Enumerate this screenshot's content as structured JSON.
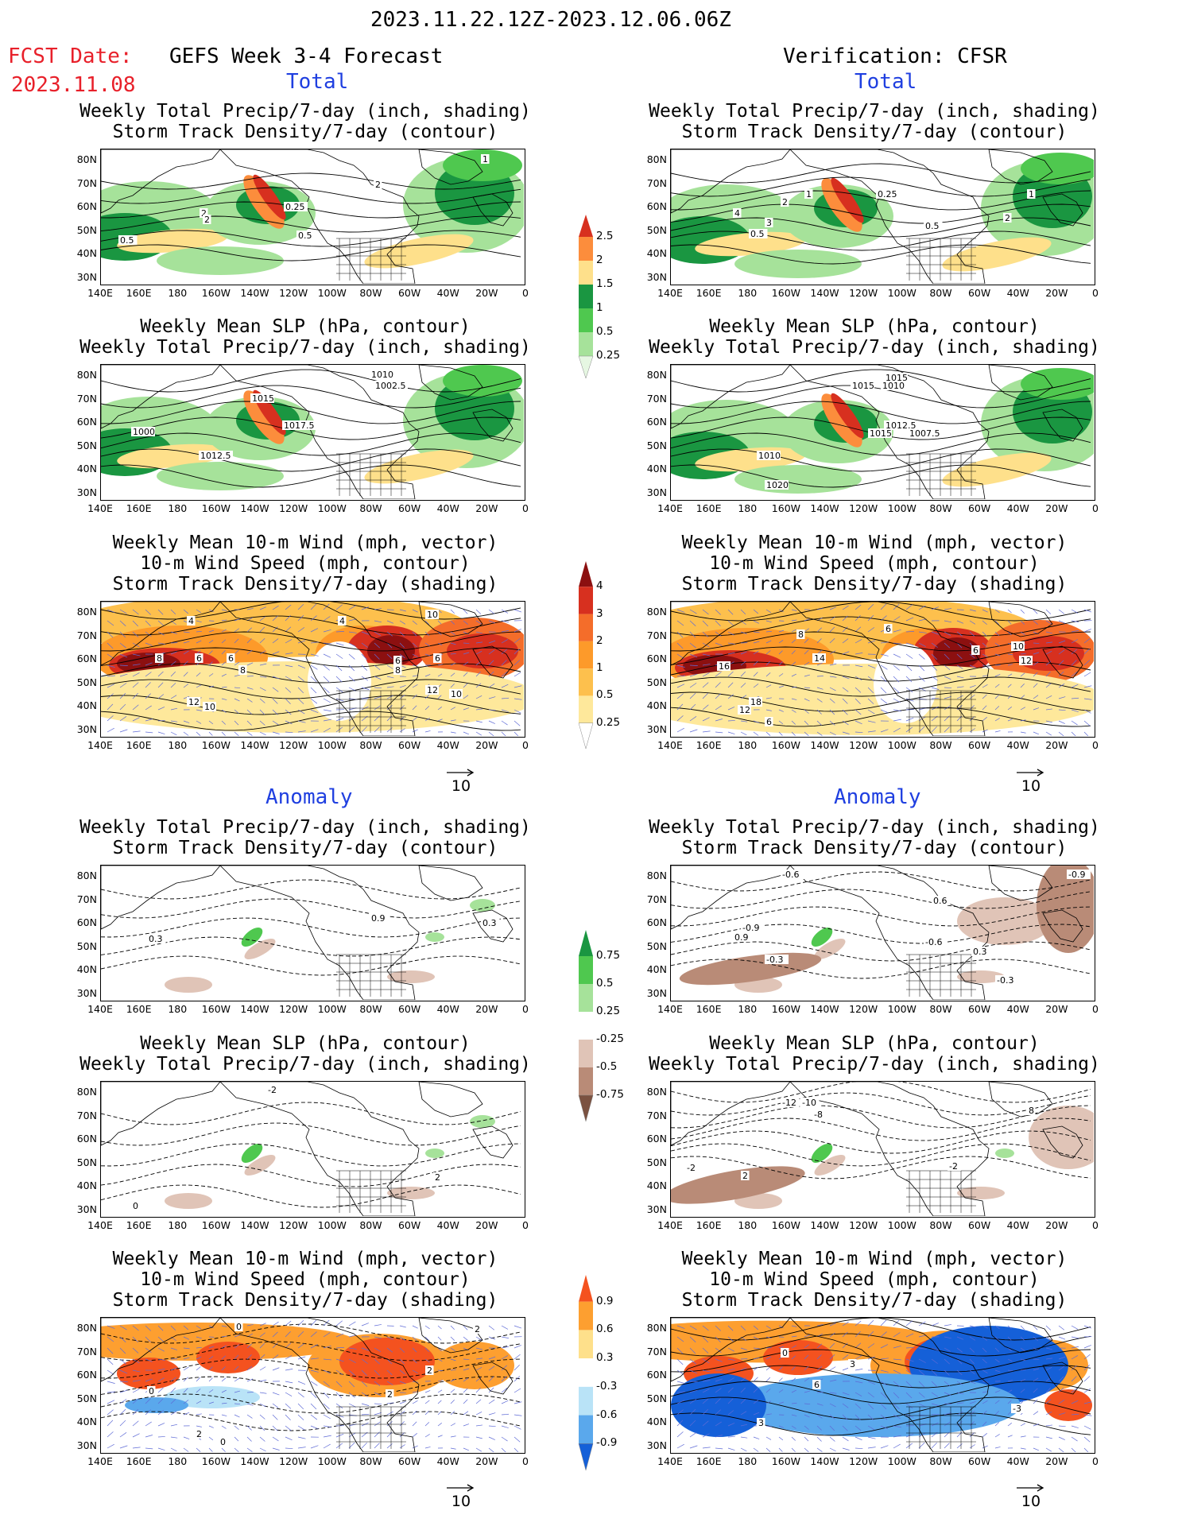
{
  "header": {
    "period": "2023.11.22.12Z-2023.12.06.06Z",
    "fcst_label": "FCST Date:",
    "fcst_date": "2023.11.08",
    "forecast_title": "GEFS Week 3-4 Forecast",
    "verification_title": "Verification: CFSR",
    "section_total": "Total",
    "section_anomaly": "Anomaly"
  },
  "panel_titles": {
    "precip_storm": [
      "Weekly Total Precip/7-day (inch, shading)",
      "Storm Track Density/7-day (contour)"
    ],
    "slp_precip": [
      "Weekly Mean SLP (hPa, contour)",
      "Weekly Total Precip/7-day (inch, shading)"
    ],
    "wind_storm": [
      "Weekly Mean 10-m Wind (mph, vector)",
      "10-m Wind Speed (mph, contour)",
      "Storm Track Density/7-day (shading)"
    ]
  },
  "axes": {
    "lat_ticks": [
      "80N",
      "70N",
      "60N",
      "50N",
      "40N",
      "30N"
    ],
    "lon_ticks": [
      "140E",
      "160E",
      "180",
      "160W",
      "140W",
      "120W",
      "100W",
      "80W",
      "60W",
      "40W",
      "20W",
      "0"
    ]
  },
  "vector_reference": "10",
  "colorbars": {
    "precip_total": {
      "labels": [
        "2.5",
        "2",
        "1.5",
        "1",
        "0.5",
        "0.25"
      ],
      "colors": [
        "#d7301f",
        "#fc8d3c",
        "#fee08b",
        "#1a9641",
        "#4fc84f",
        "#a6e29a",
        "#e6f7e2"
      ]
    },
    "storm_total": {
      "labels": [
        "4",
        "3",
        "2",
        "1",
        "0.5",
        "0.25"
      ],
      "colors": [
        "#8c1010",
        "#d7301f",
        "#f46d2a",
        "#fd9a2a",
        "#fdc04d",
        "#fee89b",
        "#ffffff"
      ]
    },
    "precip_anomaly": {
      "labels": [
        "0.75",
        "0.5",
        "0.25",
        "-0.25",
        "-0.5",
        "-0.75"
      ],
      "colors": [
        "#1a9641",
        "#4fc84f",
        "#a6e29a",
        "#ffffff",
        "#e0c4b7",
        "#b98b77",
        "#7b5241"
      ]
    },
    "storm_anomaly": {
      "labels": [
        "0.9",
        "0.6",
        "0.3",
        "-0.3",
        "-0.6",
        "-0.9"
      ],
      "colors": [
        "#f4521f",
        "#fd9f30",
        "#fee08b",
        "#ffffff",
        "#b9e3f7",
        "#5aa8ec",
        "#1560d8"
      ]
    }
  },
  "panel_labels": {
    "fcst_precip": [
      "0.5",
      "2",
      "2",
      "0.25",
      "0.5",
      "2",
      "1"
    ],
    "fcst_slp": [
      "1000",
      "1015",
      "1017.5",
      "1012.5",
      "1010",
      "1002.5"
    ],
    "fcst_wind": [
      "8",
      "6",
      "6",
      "8",
      "4",
      "4",
      "12",
      "10",
      "8",
      "6",
      "12",
      "10",
      "6",
      "10"
    ],
    "obs_precip": [
      "4",
      "3",
      "2",
      "1",
      "0.5",
      "0.25",
      "0.5",
      "2",
      "1"
    ],
    "obs_slp": [
      "1015",
      "1010",
      "1020",
      "1012.5",
      "1015",
      "1007.5",
      "1010",
      "1015"
    ],
    "obs_wind": [
      "16",
      "14",
      "18",
      "12",
      "8",
      "6",
      "6",
      "10",
      "12",
      "6"
    ],
    "fcst_precip_anom": [
      "0.3",
      "0.9",
      "0.3"
    ],
    "fcst_slp_anom": [
      "-2",
      "2",
      "0"
    ],
    "fcst_wind_anom": [
      "0",
      "0",
      "2",
      "2",
      "0",
      "2",
      "2"
    ],
    "obs_precip_anom": [
      "-0.6",
      "-0.9",
      "0.9",
      "-0.3",
      "0.6",
      "-0.6",
      "0.3",
      "-0.3",
      "-0.9"
    ],
    "obs_slp_anom": [
      "-12",
      "-10",
      "-8",
      "-2",
      "2",
      "-2",
      "8"
    ],
    "obs_wind_anom": [
      "0",
      "3",
      "6",
      "-3",
      "3"
    ]
  }
}
